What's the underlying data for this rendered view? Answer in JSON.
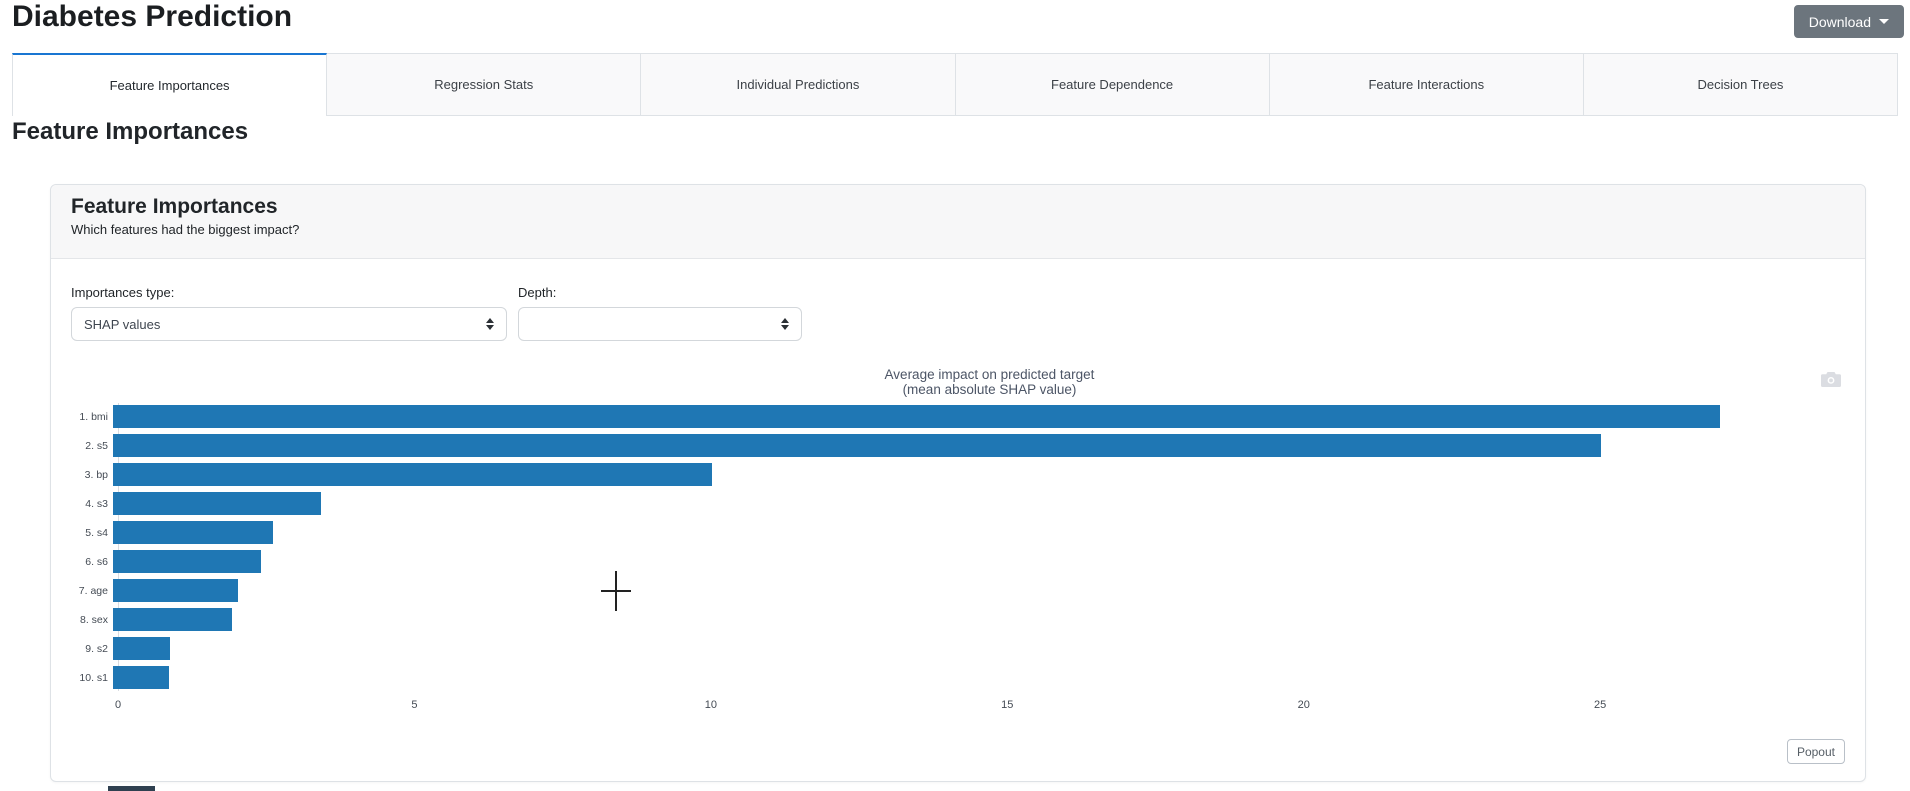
{
  "header": {
    "title": "Diabetes Prediction",
    "download_label": "Download"
  },
  "tabs": [
    {
      "label": "Feature Importances",
      "active": true
    },
    {
      "label": "Regression Stats",
      "active": false
    },
    {
      "label": "Individual Predictions",
      "active": false
    },
    {
      "label": "Feature Dependence",
      "active": false
    },
    {
      "label": "Feature Interactions",
      "active": false
    },
    {
      "label": "Decision Trees",
      "active": false
    }
  ],
  "page_heading": "Feature Importances",
  "card": {
    "title": "Feature Importances",
    "subtitle": "Which features had the biggest impact?",
    "controls": {
      "importances_type_label": "Importances type:",
      "importances_type_value": "SHAP values",
      "depth_label": "Depth:",
      "depth_value": ""
    },
    "popout_label": "Popout"
  },
  "chart_data": {
    "type": "bar",
    "orientation": "horizontal",
    "title_line1": "Average impact on predicted target",
    "title_line2": "(mean absolute SHAP value)",
    "categories": [
      "1. bmi",
      "2. s5",
      "3. bp",
      "4. s3",
      "5. s4",
      "6. s6",
      "7. age",
      "8. sex",
      "9. s2",
      "10. s1"
    ],
    "values": [
      27.1,
      25.1,
      10.1,
      3.5,
      2.7,
      2.5,
      2.1,
      2.0,
      0.96,
      0.95
    ],
    "xticks": [
      0,
      5,
      10,
      15,
      20,
      25
    ],
    "xlim": [
      0,
      29.4
    ],
    "xlabel": "",
    "ylabel": "",
    "grid": false,
    "legend": "none",
    "bar_color": "#1f77b4"
  },
  "colors": {
    "accent_tab": "#1976d2",
    "bar": "#1f77b4",
    "download_button": "#6c757d"
  },
  "icons": {
    "camera": "camera-icon",
    "caret": "caret-down-icon",
    "select_arrows": "up-down-arrows-icon"
  }
}
